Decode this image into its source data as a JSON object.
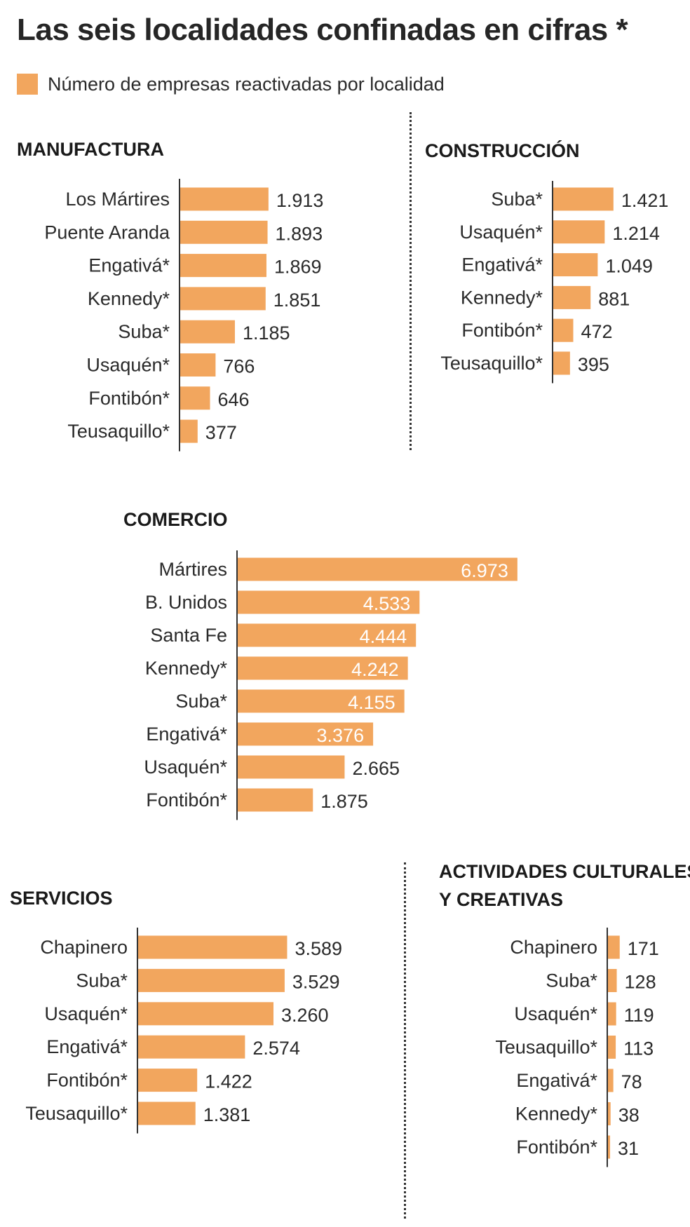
{
  "page": {
    "title": "Las seis localidades confinadas en cifras *",
    "legend_label": "Número de empresas reactivadas por localidad",
    "bar_color": "#F2A65E"
  },
  "chart_data": [
    {
      "type": "bar",
      "orientation": "horizontal",
      "title": "MANUFACTURA",
      "categories": [
        "Los Mártires",
        "Puente Aranda",
        "Engativá*",
        "Kennedy*",
        "Suba*",
        "Usaquén*",
        "Fontibón*",
        "Teusaquillo*"
      ],
      "values": [
        1913,
        1893,
        1869,
        1851,
        1185,
        766,
        646,
        377
      ],
      "value_labels": [
        "1.913",
        "1.893",
        "1.869",
        "1.851",
        "1.185",
        "766",
        "646",
        "377"
      ],
      "xlim": [
        0,
        2000
      ]
    },
    {
      "type": "bar",
      "orientation": "horizontal",
      "title": "CONSTRUCCIÓN",
      "categories": [
        "Suba*",
        "Usaquén*",
        "Engativá*",
        "Kennedy*",
        "Fontibón*",
        "Teusaquillo*"
      ],
      "values": [
        1421,
        1214,
        1049,
        881,
        472,
        395
      ],
      "value_labels": [
        "1.421",
        "1.214",
        "1.049",
        "881",
        "472",
        "395"
      ],
      "xlim": [
        0,
        2000
      ]
    },
    {
      "type": "bar",
      "orientation": "horizontal",
      "title": "COMERCIO",
      "categories": [
        "Mártires",
        "B. Unidos",
        "Santa Fe",
        "Kennedy*",
        "Suba*",
        "Engativá*",
        "Usaquén*",
        "Fontibón*"
      ],
      "values": [
        6973,
        4533,
        4444,
        4242,
        4155,
        3376,
        2665,
        1875
      ],
      "value_labels": [
        "6.973",
        "4.533",
        "4.444",
        "4.242",
        "4.155",
        "3.376",
        "2.665",
        "1.875"
      ],
      "labels_inside_top": 6,
      "xlim": [
        0,
        7000
      ]
    },
    {
      "type": "bar",
      "orientation": "horizontal",
      "title": "SERVICIOS",
      "categories": [
        "Chapinero",
        "Suba*",
        "Usaquén*",
        "Engativá*",
        "Fontibón*",
        "Teusaquillo*"
      ],
      "values": [
        3589,
        3529,
        3260,
        2574,
        1422,
        1381
      ],
      "value_labels": [
        "3.589",
        "3.529",
        "3.260",
        "2.574",
        "1.422",
        "1.381"
      ],
      "xlim": [
        0,
        4000
      ]
    },
    {
      "type": "bar",
      "orientation": "horizontal",
      "title": "ACTIVIDADES CULTURALES Y CREATIVAS",
      "title_lines": [
        "ACTIVIDADES CULTURALES",
        "Y CREATIVAS"
      ],
      "categories": [
        "Chapinero",
        "Suba*",
        "Usaquén*",
        "Teusaquillo*",
        "Engativá*",
        "Kennedy*",
        "Fontibón*"
      ],
      "values": [
        171,
        128,
        119,
        113,
        78,
        38,
        31
      ],
      "value_labels": [
        "171",
        "128",
        "119",
        "113",
        "78",
        "38",
        "31"
      ],
      "xlim": [
        0,
        1000
      ]
    }
  ]
}
